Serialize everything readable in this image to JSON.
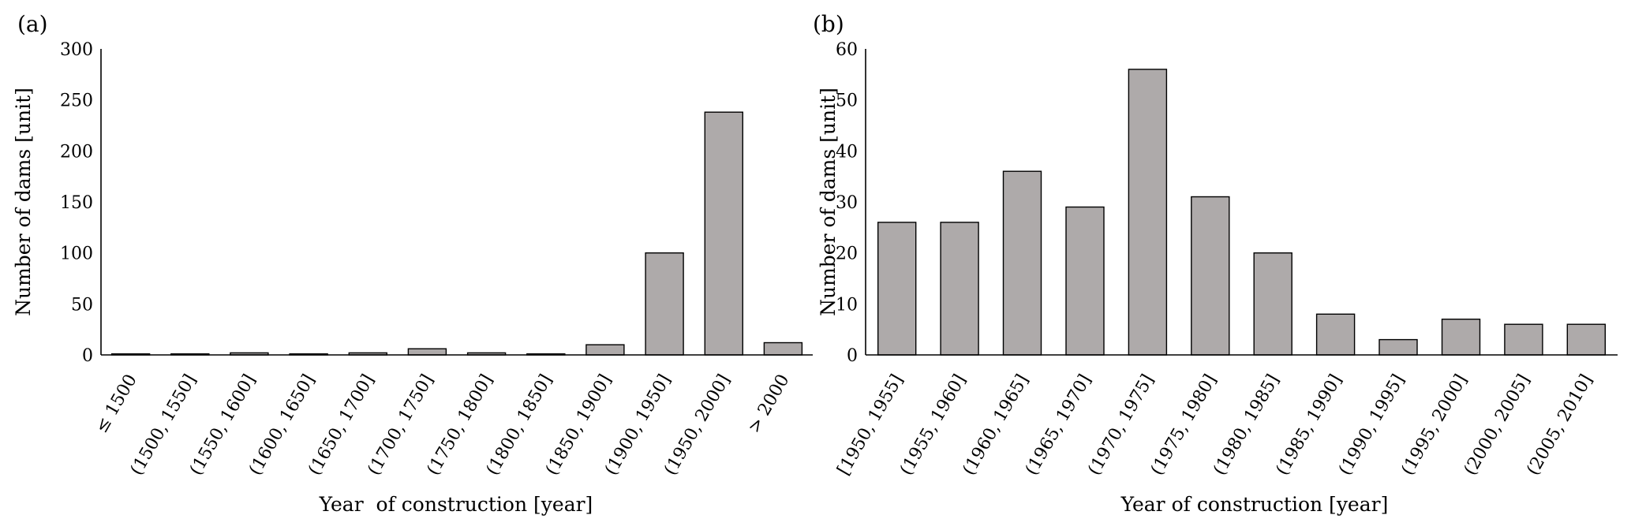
{
  "chart_data": [
    {
      "panel_label": "(a)",
      "type": "bar",
      "categories": [
        "≤ 1500",
        "(1500, 1550]",
        "(1550, 1600]",
        "(1600, 1650]",
        "(1650, 1700]",
        "(1700, 1750]",
        "(1750, 1800]",
        "(1800, 1850]",
        "(1850, 1900]",
        "(1900, 1950]",
        "(1950, 2000]",
        "> 2000"
      ],
      "values": [
        1,
        1,
        2,
        1,
        2,
        6,
        2,
        1,
        10,
        100,
        238,
        12
      ],
      "xlabel": "Year  of construction [year]",
      "ylabel": "Number of dams [unit]",
      "ylim": [
        0,
        300
      ],
      "yticks": [
        "0",
        "50",
        "100",
        "150",
        "200",
        "250",
        "300"
      ],
      "grid": false,
      "bar_color": "#aeaaaa"
    },
    {
      "panel_label": "(b)",
      "type": "bar",
      "categories": [
        "[1950, 1955]",
        "(1955, 1960]",
        "(1960, 1965]",
        "(1965, 1970]",
        "(1970, 1975]",
        "(1975, 1980]",
        "(1980, 1985]",
        "(1985, 1990]",
        "(1990, 1995]",
        "(1995, 2000]",
        "(2000, 2005]",
        "(2005, 2010]"
      ],
      "values": [
        26,
        26,
        36,
        29,
        56,
        31,
        20,
        8,
        3,
        7,
        6,
        6
      ],
      "xlabel": "Year of construction [year]",
      "ylabel": "Number of dams [unit]",
      "ylim": [
        0,
        60
      ],
      "yticks": [
        "0",
        "10",
        "20",
        "30",
        "40",
        "50",
        "60"
      ],
      "grid": false,
      "bar_color": "#aeaaaa"
    }
  ]
}
